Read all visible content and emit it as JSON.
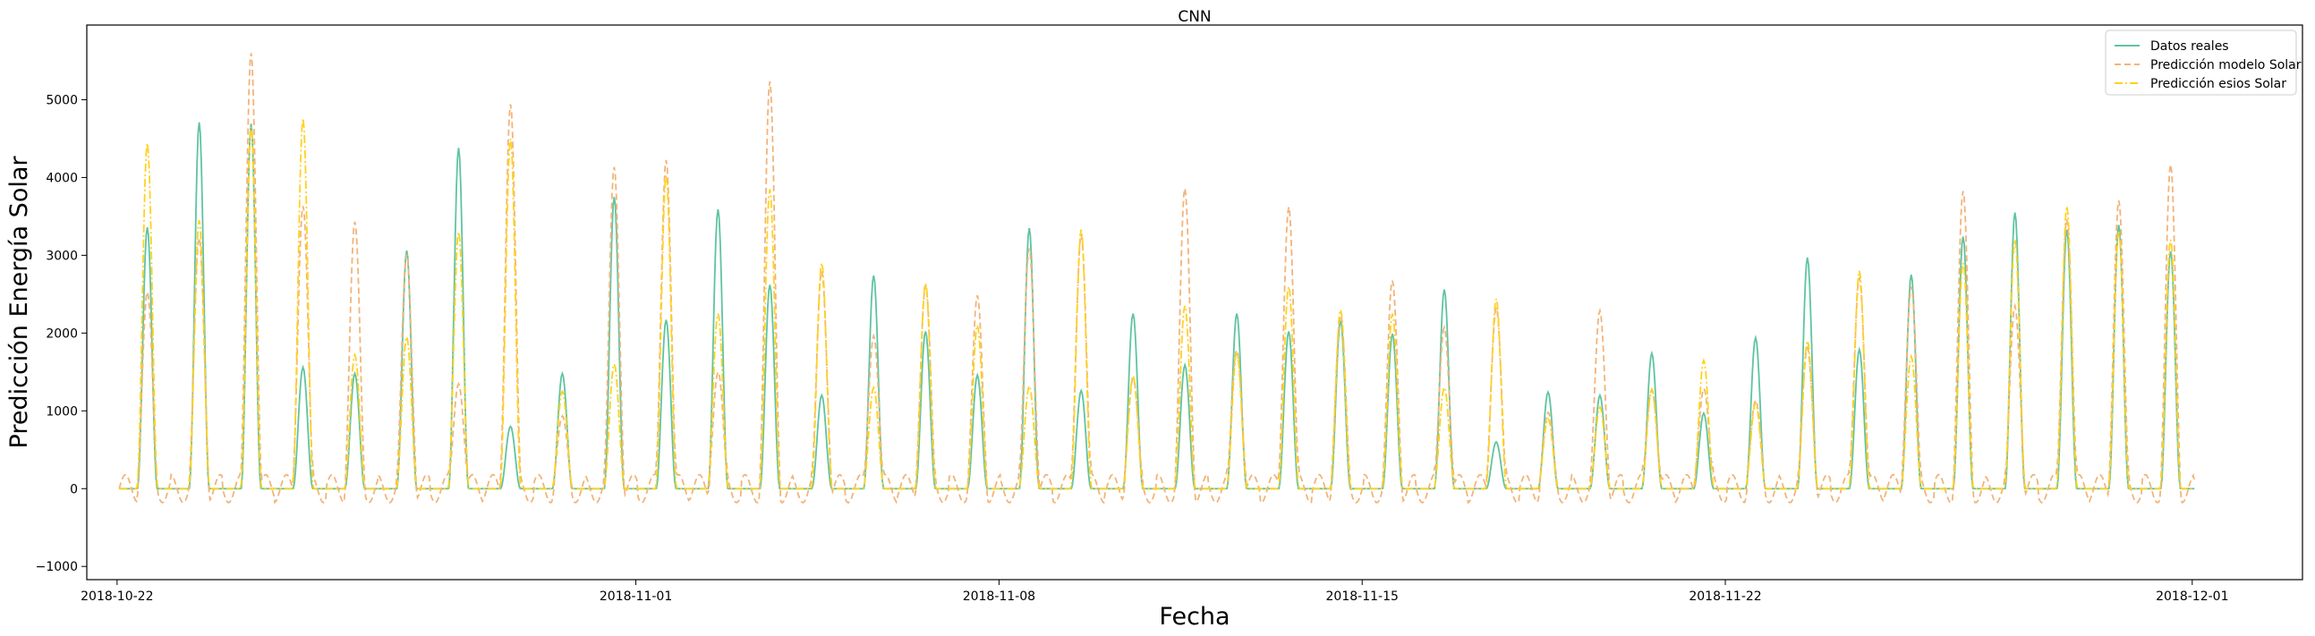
{
  "chart_data": {
    "type": "line",
    "title": "CNN",
    "xlabel": "Fecha",
    "ylabel": "Predicción Energía Solar",
    "x_start": "2018-10-22",
    "x_ticks": [
      "2018-10-22",
      "2018-11-01",
      "2018-11-08",
      "2018-11-15",
      "2018-11-22",
      "2018-12-01"
    ],
    "xlim": [
      "2018-10-21T10:00",
      "2018-12-03T03:00"
    ],
    "y_ticks": [
      -1000,
      0,
      1000,
      2000,
      3000,
      4000,
      5000
    ],
    "ylim": [
      -1170,
      5960
    ],
    "grid": false,
    "legend_position": "top-right",
    "daily_peak_hour": 13,
    "series": [
      {
        "name": "Datos reales",
        "color": "#5fc4a0",
        "dash": "solid",
        "daily_peaks": [
          3360,
          4710,
          4690,
          1560,
          1480,
          3060,
          4380,
          800,
          1480,
          3750,
          2170,
          3590,
          2620,
          1200,
          2740,
          2020,
          1460,
          3350,
          1260,
          2250,
          1590,
          2250,
          2020,
          2160,
          1990,
          2560,
          600,
          1240,
          1200,
          1740,
          970,
          1940,
          2970,
          1790,
          2750,
          3240,
          3550,
          3330,
          3390,
          3050
        ]
      },
      {
        "name": "Predicción modelo Solar",
        "color": "#f2b47a",
        "dash": "dashed",
        "daily_peaks": [
          2500,
          3200,
          5630,
          3650,
          3400,
          3000,
          1380,
          4950,
          900,
          4130,
          4260,
          1500,
          5200,
          2800,
          2000,
          2600,
          2450,
          3100,
          3300,
          1400,
          3830,
          1800,
          3650,
          2200,
          2650,
          2100,
          2350,
          950,
          2270,
          1300,
          1300,
          1100,
          1800,
          2750,
          2600,
          3790,
          2350,
          3500,
          3700,
          4130
        ]
      },
      {
        "name": "Predicción esios Solar",
        "color": "#ffd21e",
        "dash": "dashdot",
        "daily_peaks": [
          4440,
          3450,
          4650,
          4760,
          1720,
          1950,
          3300,
          4500,
          1250,
          1600,
          4030,
          2250,
          3850,
          2900,
          1300,
          2640,
          2100,
          1320,
          3330,
          1450,
          2350,
          1750,
          2600,
          2300,
          2250,
          1300,
          2440,
          900,
          1050,
          1280,
          1650,
          1100,
          1900,
          2800,
          1700,
          2900,
          3200,
          3630,
          3300,
          3200
        ]
      }
    ]
  }
}
